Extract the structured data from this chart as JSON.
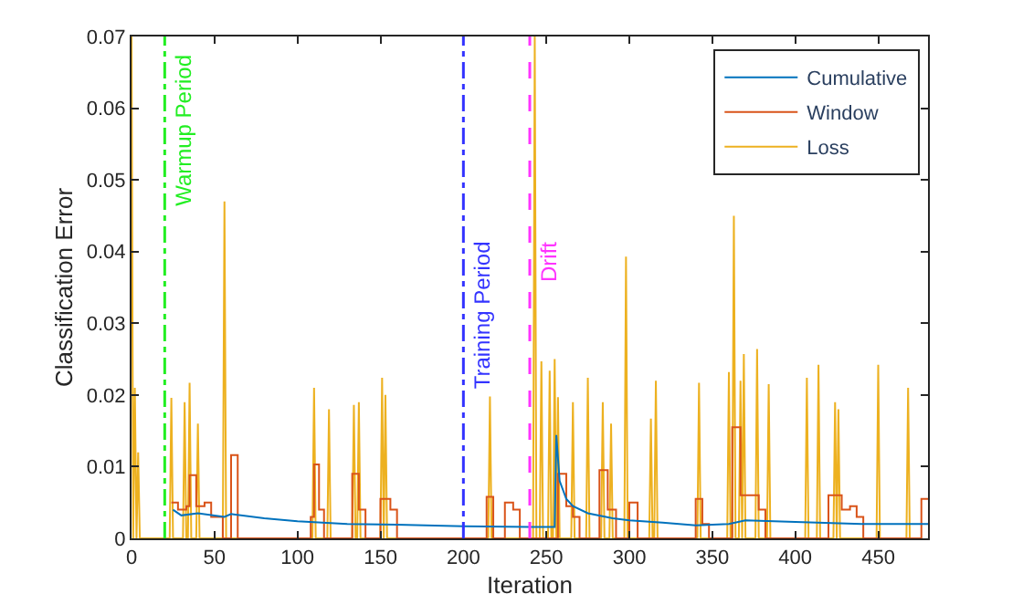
{
  "chart_data": {
    "type": "line",
    "xlabel": "Iteration",
    "ylabel": "Classification Error",
    "xlim": [
      0,
      480
    ],
    "xticks": [
      0,
      50,
      100,
      150,
      200,
      250,
      300,
      350,
      400,
      450
    ],
    "ylim": [
      0,
      0.07
    ],
    "yticks": [
      0,
      0.01,
      0.02,
      0.03,
      0.04,
      0.05,
      0.06,
      0.07
    ],
    "legend": "top right",
    "marker": "none",
    "series": [
      {
        "name": "Cumulative",
        "color": "#0072bd",
        "x": [
          25,
          30,
          40,
          56,
          60,
          80,
          100,
          130,
          160,
          200,
          240,
          255,
          256,
          258,
          262,
          266,
          275,
          290,
          300,
          320,
          340,
          360,
          370,
          400,
          440,
          480
        ],
        "values": [
          0.004,
          0.0032,
          0.0035,
          0.003,
          0.0034,
          0.0028,
          0.0024,
          0.002,
          0.0019,
          0.0017,
          0.0016,
          0.0016,
          0.0144,
          0.008,
          0.0055,
          0.0045,
          0.0035,
          0.0028,
          0.0025,
          0.0022,
          0.0018,
          0.002,
          0.0025,
          0.0023,
          0.002,
          0.002
        ]
      },
      {
        "name": "Window",
        "color": "#d95319",
        "type": "step",
        "x": [
          24,
          28,
          33,
          35,
          39,
          44,
          48,
          55,
          60,
          64,
          108,
          110,
          113,
          116,
          120,
          133,
          137,
          141,
          150,
          156,
          160,
          212,
          214,
          218,
          222,
          225,
          230,
          234,
          255,
          257,
          262,
          266,
          270,
          282,
          287,
          292,
          300,
          305,
          310,
          340,
          344,
          348,
          362,
          367,
          378,
          382,
          420,
          428,
          433,
          437,
          441,
          476,
          480
        ],
        "values": [
          0.005,
          0.004,
          0.0045,
          0.0088,
          0.0045,
          0.005,
          0.003,
          0,
          0.0116,
          0,
          0.003,
          0.0103,
          0.004,
          0,
          0,
          0.009,
          0.004,
          0,
          0.0055,
          0.004,
          0,
          0,
          0.0058,
          0,
          0,
          0.005,
          0.004,
          0,
          0,
          0.009,
          0.0045,
          0.003,
          0,
          0.0095,
          0.004,
          0,
          0.005,
          0,
          0,
          0.0055,
          0.002,
          0,
          0.0155,
          0.006,
          0.004,
          0,
          0.006,
          0.004,
          0.0045,
          0.003,
          0,
          0.0055,
          0.0055
        ]
      },
      {
        "name": "Loss",
        "color": "#edb120",
        "x": [
          0,
          1,
          2,
          3,
          4,
          5,
          23,
          24,
          25,
          31,
          32,
          33,
          34,
          35,
          36,
          39,
          40,
          41,
          55,
          56,
          57,
          109,
          110,
          111,
          118,
          119,
          120,
          133,
          134,
          135,
          136,
          137,
          138,
          150,
          151,
          152,
          153,
          154,
          215,
          216,
          217,
          242,
          243,
          244,
          246,
          247,
          248,
          251,
          252,
          253,
          254,
          255,
          256,
          257,
          258,
          265,
          266,
          267,
          274,
          275,
          276,
          283,
          284,
          285,
          288,
          289,
          290,
          297,
          298,
          299,
          312,
          313,
          314,
          315,
          316,
          317,
          341,
          342,
          343,
          359,
          360,
          361,
          362,
          363,
          364,
          366,
          367,
          368,
          369,
          370,
          376,
          377,
          378,
          383,
          384,
          385,
          406,
          407,
          408,
          413,
          414,
          415,
          423,
          424,
          425,
          426,
          427,
          449,
          450,
          451,
          467,
          468,
          469
        ],
        "values": [
          0.07,
          0,
          0.021,
          0,
          0.012,
          0,
          0,
          0.0196,
          0,
          0,
          0.019,
          0,
          0,
          0.0217,
          0,
          0,
          0.016,
          0,
          0,
          0.047,
          0,
          0,
          0.021,
          0,
          0,
          0.018,
          0,
          0,
          0.0186,
          0,
          0,
          0.019,
          0,
          0,
          0.0224,
          0,
          0.02,
          0,
          0,
          0.0198,
          0,
          0,
          0.07,
          0,
          0,
          0.0247,
          0,
          0,
          0.0234,
          0,
          0,
          0.025,
          0,
          0.0197,
          0,
          0,
          0.019,
          0,
          0,
          0.0224,
          0,
          0,
          0.019,
          0,
          0,
          0.016,
          0,
          0,
          0.0393,
          0,
          0,
          0.0167,
          0,
          0,
          0.022,
          0,
          0,
          0.0217,
          0,
          0,
          0.0232,
          0,
          0,
          0.045,
          0,
          0,
          0.022,
          0,
          0.0257,
          0,
          0,
          0.0264,
          0,
          0,
          0.0215,
          0,
          0,
          0.0224,
          0,
          0,
          0.0242,
          0,
          0,
          0.019,
          0,
          0.018,
          0,
          0,
          0.0242,
          0,
          0,
          0.021,
          0
        ]
      }
    ],
    "ref_lines": [
      {
        "axis": "x",
        "value": 20,
        "label": "Warmup Period",
        "color": "#22ee22",
        "line_style": "dashdot"
      },
      {
        "axis": "x",
        "value": 200,
        "label": "Training Period",
        "color": "#3333ff",
        "line_style": "dashdot"
      },
      {
        "axis": "x",
        "value": 240,
        "label": "Drift",
        "color": "#ff33ff",
        "line_style": "dashed"
      }
    ]
  }
}
